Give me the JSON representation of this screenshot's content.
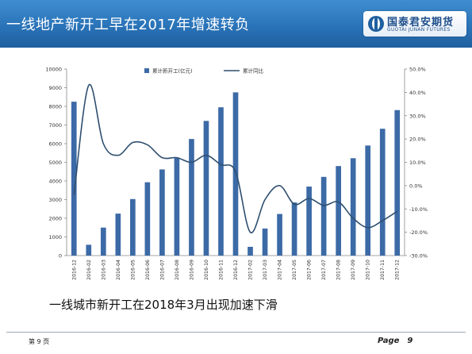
{
  "slide": {
    "title": "一线地产新开工早在2017年增速转负",
    "subtitle": "一线城市新开工在2018年3月出现加速下滑",
    "logo_cn": "国泰君安期货",
    "logo_en": "GUOTAI JUNAN FUTURES",
    "footer_left": "第 9 页",
    "footer_page_word": "Page",
    "footer_page_num": "9"
  },
  "colors": {
    "header_blue": "#2a73b8",
    "bar": "#3c6aa6",
    "line": "#2f4f6f"
  },
  "chart_data": {
    "type": "bar",
    "categories": [
      "2016-12",
      "2016-02",
      "2016-03",
      "2016-04",
      "2016-05",
      "2016-06",
      "2016-07",
      "2016-08",
      "2016-09",
      "2016-10",
      "2016-11",
      "2016-12",
      "2017-02",
      "2017-03",
      "2017-04",
      "2017-05",
      "2017-06",
      "2017-07",
      "2017-08",
      "2017-09",
      "2017-10",
      "2017-11",
      "2017-12"
    ],
    "series": [
      {
        "name": "累计新开工(亿元)",
        "axis": "left",
        "values": [
          8250,
          580,
          1500,
          2250,
          3030,
          3930,
          4620,
          5250,
          6250,
          7220,
          7950,
          8750,
          470,
          1450,
          2230,
          2850,
          3700,
          4220,
          4800,
          5220,
          5900,
          6800,
          7800
        ]
      },
      {
        "name": "累计同比",
        "axis": "right",
        "type": "line",
        "values": [
          -4.0,
          43.0,
          18.0,
          13.0,
          18.5,
          17.5,
          12.0,
          12.0,
          10.0,
          13.0,
          9.0,
          6.0,
          -20.0,
          -6.0,
          0.0,
          -8.0,
          -5.5,
          -8.5,
          -7.0,
          -14.0,
          -18.0,
          -15.0,
          -11.0
        ]
      }
    ],
    "y_left": {
      "ylim": [
        0,
        10000
      ],
      "ticks": [
        "0",
        "1000",
        "2000",
        "3000",
        "4000",
        "5000",
        "6000",
        "7000",
        "8000",
        "9000",
        "10000"
      ]
    },
    "y_right": {
      "ylim": [
        -30,
        50
      ],
      "ticks": [
        "-30.0%",
        "-20.0%",
        "-10.0%",
        "0.0%",
        "10.0%",
        "20.0%",
        "30.0%",
        "40.0%",
        "50.0%"
      ]
    },
    "legend": {
      "position": "top-center"
    },
    "grid": false
  }
}
